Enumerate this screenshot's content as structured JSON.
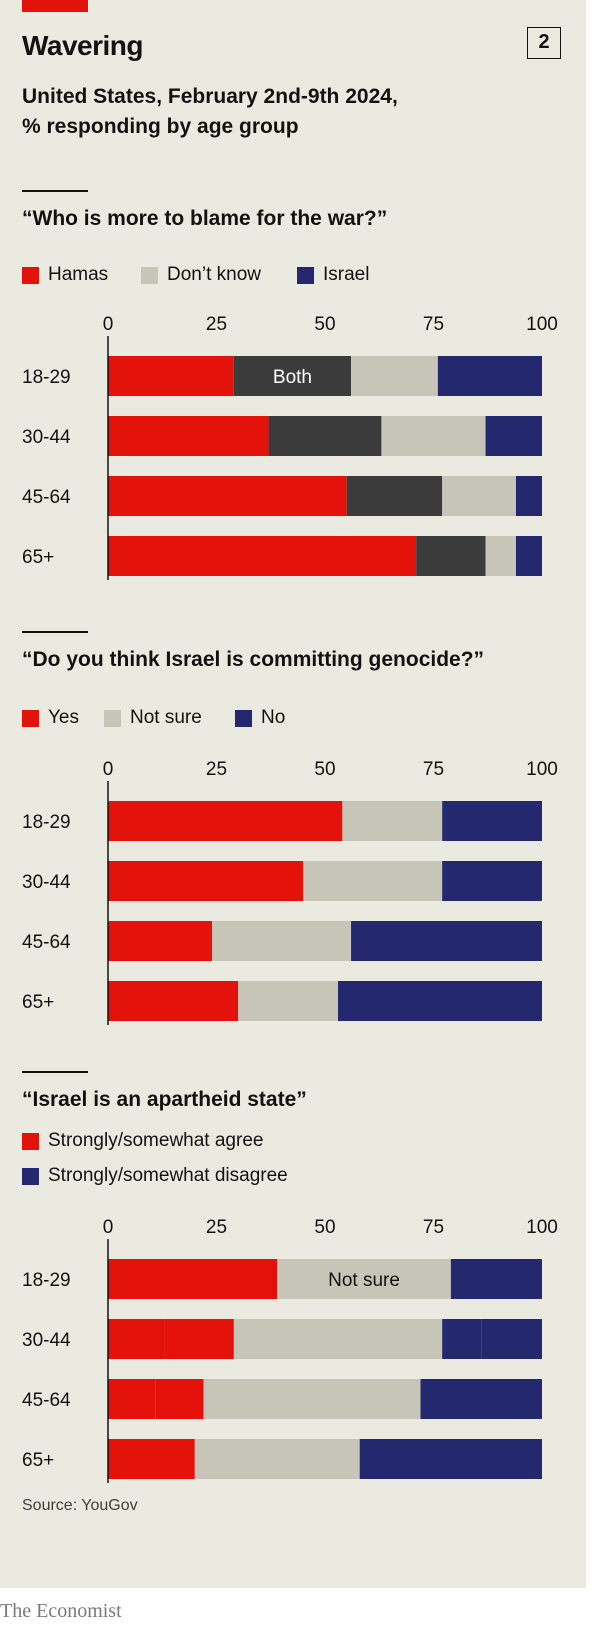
{
  "header": {
    "title": "Wavering",
    "chart_number": "2",
    "subtitle_line1": "United States, February 2nd-9th 2024,",
    "subtitle_line2": "% responding by age group"
  },
  "footer": {
    "source": "Source: YouGov",
    "brand": "The Economist"
  },
  "colors": {
    "red": "#e3120b",
    "dark": "#3b3b3b",
    "grey": "#c6c5b8",
    "navy": "#23286f"
  },
  "chart_data": [
    {
      "type": "bar",
      "orientation": "horizontal",
      "stacked": true,
      "title": "“Who is more to blame for the war?”",
      "legend": [
        "Hamas",
        "Don’t know",
        "Israel"
      ],
      "xlim": [
        0,
        100
      ],
      "xticks": [
        "0",
        "25",
        "50",
        "75",
        "100"
      ],
      "categories": [
        "18-29",
        "30-44",
        "45-64",
        "65+"
      ],
      "series": [
        {
          "name": "Hamas",
          "color": "#e3120b",
          "values": [
            29,
            37,
            55,
            71
          ]
        },
        {
          "name": "Both",
          "color": "#3b3b3b",
          "values": [
            27,
            26,
            22,
            16
          ]
        },
        {
          "name": "Don’t know",
          "color": "#c6c5b8",
          "values": [
            20,
            24,
            17,
            7
          ]
        },
        {
          "name": "Israel",
          "color": "#23286f",
          "values": [
            24,
            13,
            6,
            6
          ]
        }
      ],
      "annotations": [
        {
          "text": "Both",
          "category": "18-29",
          "series": "Both"
        }
      ]
    },
    {
      "type": "bar",
      "orientation": "horizontal",
      "stacked": true,
      "title": "“Do you think Israel is committing genocide?”",
      "legend": [
        "Yes",
        "Not sure",
        "No"
      ],
      "xlim": [
        0,
        100
      ],
      "xticks": [
        "0",
        "25",
        "50",
        "75",
        "100"
      ],
      "categories": [
        "18-29",
        "30-44",
        "45-64",
        "65+"
      ],
      "series": [
        {
          "name": "Yes",
          "color": "#e3120b",
          "values": [
            54,
            45,
            24,
            30
          ]
        },
        {
          "name": "Not sure",
          "color": "#c6c5b8",
          "values": [
            23,
            32,
            32,
            23
          ]
        },
        {
          "name": "No",
          "color": "#23286f",
          "values": [
            23,
            23,
            44,
            47
          ]
        }
      ]
    },
    {
      "type": "bar",
      "orientation": "horizontal",
      "stacked": true,
      "title": "“Israel is an apartheid state”",
      "legend": [
        "Strongly/somewhat agree",
        "Strongly/somewhat disagree"
      ],
      "xlim": [
        0,
        100
      ],
      "xticks": [
        "0",
        "25",
        "50",
        "75",
        "100"
      ],
      "categories": [
        "18-29",
        "30-44",
        "45-64",
        "65+"
      ],
      "series": [
        {
          "name": "Strongly agree",
          "color": "#e3120b",
          "values": [
            39,
            13,
            11,
            20
          ]
        },
        {
          "name": "Somewhat agree",
          "color": "#e3120b",
          "values": [
            0,
            16,
            11,
            0
          ]
        },
        {
          "name": "Not sure",
          "color": "#c6c5b8",
          "values": [
            40,
            48,
            50,
            38
          ]
        },
        {
          "name": "Somewhat disagree",
          "color": "#23286f",
          "values": [
            0,
            9,
            0,
            0
          ]
        },
        {
          "name": "Strongly disagree",
          "color": "#23286f",
          "values": [
            21,
            14,
            28,
            42
          ]
        }
      ],
      "annotations": [
        {
          "text": "Not sure",
          "category": "18-29",
          "series": "Not sure"
        }
      ]
    }
  ]
}
